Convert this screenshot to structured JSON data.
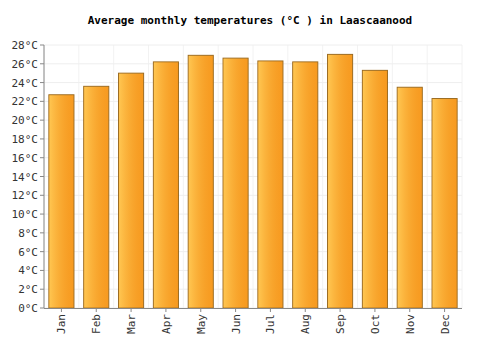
{
  "chart_data": {
    "type": "bar",
    "title": "Average monthly temperatures (°C ) in Laascaanood",
    "categories": [
      "Jan",
      "Feb",
      "Mar",
      "Apr",
      "May",
      "Jun",
      "Jul",
      "Aug",
      "Sep",
      "Oct",
      "Nov",
      "Dec"
    ],
    "values": [
      22.7,
      23.6,
      25.0,
      26.2,
      26.9,
      26.6,
      26.3,
      26.2,
      27.0,
      25.3,
      23.5,
      22.3
    ],
    "color": "#ffa62b",
    "ylim": [
      0,
      28
    ],
    "yticks": [
      {
        "value": 0,
        "label": "0°C"
      },
      {
        "value": 2,
        "label": "2°C"
      },
      {
        "value": 4,
        "label": "4°C"
      },
      {
        "value": 6,
        "label": "6°C"
      },
      {
        "value": 8,
        "label": "8°C"
      },
      {
        "value": 10,
        "label": "10°C"
      },
      {
        "value": 12,
        "label": "12°C"
      },
      {
        "value": 14,
        "label": "14°C"
      },
      {
        "value": 16,
        "label": "16°C"
      },
      {
        "value": 18,
        "label": "18°C"
      },
      {
        "value": 20,
        "label": "20°C"
      },
      {
        "value": 22,
        "label": "22°C"
      },
      {
        "value": 24,
        "label": "24°C"
      },
      {
        "value": 26,
        "label": "26°C"
      },
      {
        "value": 28,
        "label": "28°C"
      }
    ],
    "grid": true
  }
}
